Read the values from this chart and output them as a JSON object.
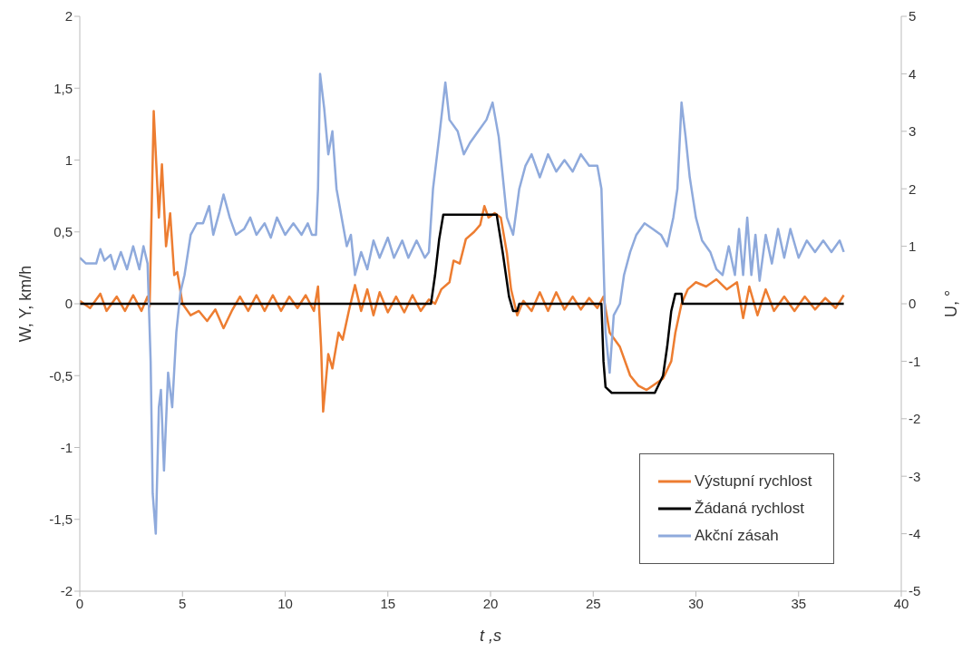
{
  "chart_data": {
    "type": "line",
    "xlabel": "t ,s",
    "ylabel": "W, Y, km/h",
    "y2label": "U, °",
    "xlim": [
      0,
      40
    ],
    "xticks": [
      0,
      5,
      10,
      15,
      20,
      25,
      30,
      35,
      40
    ],
    "ylim": [
      -2,
      2
    ],
    "yticks": [
      {
        "value": -2,
        "label": "-2"
      },
      {
        "value": -1.5,
        "label": "-1,5"
      },
      {
        "value": -1,
        "label": "-1"
      },
      {
        "value": -0.5,
        "label": "-0,5"
      },
      {
        "value": 0,
        "label": "0"
      },
      {
        "value": 0.5,
        "label": "0,5"
      },
      {
        "value": 1,
        "label": "1"
      },
      {
        "value": 1.5,
        "label": "1,5"
      },
      {
        "value": 2,
        "label": "2"
      }
    ],
    "y2lim": [
      -5,
      5
    ],
    "y2ticks": [
      -5,
      -4,
      -3,
      -2,
      -1,
      0,
      1,
      2,
      3,
      4,
      5
    ],
    "grid": false,
    "legend": "bottom right",
    "marker": "none",
    "line_style": "solid",
    "series": [
      {
        "name": "Výstupní rychlost",
        "color": "#ed7d31",
        "x": [
          0,
          0.5,
          1,
          1.3,
          1.8,
          2.2,
          2.6,
          3,
          3.3,
          3.4,
          3.6,
          3.85,
          4,
          4.2,
          4.4,
          4.6,
          4.75,
          5,
          5.4,
          5.8,
          6.2,
          6.6,
          7,
          7.4,
          7.8,
          8.2,
          8.6,
          9,
          9.4,
          9.8,
          10.2,
          10.6,
          11,
          11.4,
          11.6,
          11.75,
          11.85,
          12.1,
          12.3,
          12.6,
          12.8,
          13.1,
          13.4,
          13.7,
          14,
          14.3,
          14.6,
          15,
          15.4,
          15.8,
          16.2,
          16.6,
          17,
          17.3,
          17.6,
          18,
          18.2,
          18.5,
          18.8,
          19.2,
          19.5,
          19.7,
          19.9,
          20.2,
          20.5,
          20.8,
          21,
          21.3,
          21.6,
          22,
          22.4,
          22.8,
          23.2,
          23.6,
          24,
          24.4,
          24.8,
          25.2,
          25.5,
          25.8,
          26.3,
          26.8,
          27.2,
          27.6,
          28,
          28.4,
          28.8,
          29,
          29.3,
          29.6,
          30,
          30.5,
          31,
          31.5,
          32,
          32.3,
          32.6,
          33,
          33.4,
          33.8,
          34.3,
          34.8,
          35.3,
          35.8,
          36.3,
          36.8,
          37.2
        ],
        "values": [
          0.02,
          -0.03,
          0.07,
          -0.05,
          0.05,
          -0.05,
          0.06,
          -0.05,
          0.05,
          -0.02,
          1.34,
          0.6,
          0.97,
          0.4,
          0.63,
          0.2,
          0.22,
          0,
          -0.08,
          -0.05,
          -0.12,
          -0.04,
          -0.17,
          -0.05,
          0.05,
          -0.05,
          0.06,
          -0.05,
          0.06,
          -0.05,
          0.05,
          -0.03,
          0.06,
          -0.05,
          0.12,
          -0.3,
          -0.75,
          -0.35,
          -0.45,
          -0.2,
          -0.25,
          -0.05,
          0.13,
          -0.05,
          0.1,
          -0.08,
          0.08,
          -0.06,
          0.05,
          -0.06,
          0.06,
          -0.05,
          0.03,
          0,
          0.1,
          0.15,
          0.3,
          0.28,
          0.45,
          0.5,
          0.55,
          0.68,
          0.6,
          0.63,
          0.6,
          0.35,
          0.1,
          -0.08,
          0.02,
          -0.05,
          0.08,
          -0.05,
          0.08,
          -0.04,
          0.05,
          -0.04,
          0.04,
          -0.03,
          0.05,
          -0.2,
          -0.3,
          -0.5,
          -0.57,
          -0.6,
          -0.56,
          -0.52,
          -0.4,
          -0.2,
          0,
          0.1,
          0.15,
          0.12,
          0.17,
          0.1,
          0.15,
          -0.1,
          0.12,
          -0.08,
          0.1,
          -0.05,
          0.05,
          -0.05,
          0.05,
          -0.04,
          0.04,
          -0.03,
          0.06
        ]
      },
      {
        "name": "Žádaná rychlost",
        "color": "#000000",
        "x": [
          0,
          17.1,
          17.3,
          17.5,
          17.7,
          20.3,
          20.6,
          20.9,
          21.1,
          21.3,
          21.4,
          25.4,
          25.5,
          25.6,
          25.9,
          28,
          28.4,
          28.6,
          28.8,
          29,
          29.3,
          29.35,
          37.2
        ],
        "values": [
          0,
          0,
          0.2,
          0.45,
          0.62,
          0.62,
          0.35,
          0.05,
          -0.05,
          -0.05,
          0,
          0,
          -0.4,
          -0.58,
          -0.62,
          -0.62,
          -0.5,
          -0.3,
          -0.05,
          0.07,
          0.07,
          0,
          0
        ]
      },
      {
        "name": "Akční zásah",
        "color": "#8faadc",
        "axis": "y2",
        "x": [
          0,
          0.3,
          0.8,
          1,
          1.2,
          1.5,
          1.7,
          2,
          2.3,
          2.6,
          2.9,
          3.1,
          3.3,
          3.45,
          3.55,
          3.7,
          3.85,
          3.95,
          4.1,
          4.3,
          4.5,
          4.7,
          4.9,
          5.1,
          5.4,
          5.7,
          6,
          6.3,
          6.5,
          6.8,
          7,
          7.3,
          7.6,
          8,
          8.3,
          8.6,
          9,
          9.3,
          9.6,
          10,
          10.4,
          10.8,
          11.1,
          11.3,
          11.5,
          11.6,
          11.7,
          11.9,
          12.1,
          12.3,
          12.5,
          12.8,
          13,
          13.2,
          13.4,
          13.7,
          14,
          14.3,
          14.6,
          15,
          15.3,
          15.7,
          16,
          16.4,
          16.8,
          17,
          17.2,
          17.5,
          17.8,
          18,
          18.4,
          18.7,
          19,
          19.4,
          19.8,
          20.1,
          20.4,
          20.8,
          21.1,
          21.4,
          21.7,
          22,
          22.4,
          22.8,
          23.2,
          23.6,
          24,
          24.4,
          24.8,
          25.2,
          25.4,
          25.6,
          25.8,
          26,
          26.3,
          26.5,
          26.8,
          27.1,
          27.5,
          27.9,
          28.3,
          28.6,
          28.9,
          29.1,
          29.3,
          29.5,
          29.7,
          30,
          30.3,
          30.7,
          31,
          31.3,
          31.6,
          31.9,
          32.1,
          32.3,
          32.5,
          32.7,
          32.9,
          33.1,
          33.4,
          33.7,
          34,
          34.3,
          34.6,
          35,
          35.4,
          35.8,
          36.2,
          36.6,
          37,
          37.2
        ],
        "values": [
          0.8,
          0.7,
          0.7,
          0.95,
          0.75,
          0.85,
          0.6,
          0.9,
          0.6,
          1,
          0.6,
          1,
          0.7,
          -1,
          -3.3,
          -4,
          -1.8,
          -1.5,
          -2.9,
          -1.2,
          -1.8,
          -0.5,
          0.2,
          0.5,
          1.2,
          1.4,
          1.4,
          1.7,
          1.2,
          1.6,
          1.9,
          1.5,
          1.2,
          1.3,
          1.5,
          1.2,
          1.4,
          1.15,
          1.5,
          1.2,
          1.4,
          1.2,
          1.4,
          1.2,
          1.2,
          2,
          4,
          3.4,
          2.6,
          3,
          2,
          1.4,
          1,
          1.2,
          0.5,
          0.9,
          0.6,
          1.1,
          0.8,
          1.15,
          0.8,
          1.1,
          0.8,
          1.1,
          0.8,
          0.9,
          2,
          2.9,
          3.85,
          3.2,
          3,
          2.6,
          2.8,
          3,
          3.2,
          3.5,
          2.9,
          1.5,
          1.2,
          2,
          2.4,
          2.6,
          2.2,
          2.6,
          2.3,
          2.5,
          2.3,
          2.6,
          2.4,
          2.4,
          2,
          -0.5,
          -1.2,
          -0.2,
          0,
          0.5,
          0.9,
          1.2,
          1.4,
          1.3,
          1.2,
          1,
          1.5,
          2,
          3.5,
          2.9,
          2.2,
          1.5,
          1.1,
          0.9,
          0.6,
          0.5,
          1,
          0.5,
          1.3,
          0.5,
          1.5,
          0.5,
          1.2,
          0.4,
          1.2,
          0.7,
          1.3,
          0.8,
          1.3,
          0.8,
          1.1,
          0.9,
          1.1,
          0.9,
          1.1,
          0.9
        ]
      }
    ]
  }
}
